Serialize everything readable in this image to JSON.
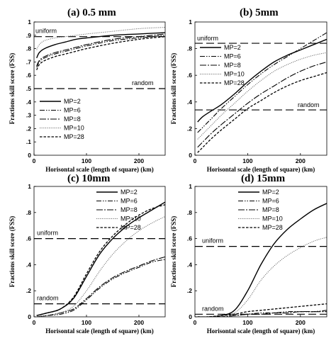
{
  "chart_data": [
    {
      "type": "line",
      "title": "(a) 0.5 mm",
      "xlabel": "Horisontal scale (length of square) (km)",
      "ylabel": "Fractions skill score (FSS)",
      "xlim": [
        0,
        250
      ],
      "ylim": [
        0,
        1
      ],
      "xticks": [
        0,
        100,
        200
      ],
      "yticks": [
        0,
        0.1,
        0.2,
        0.3,
        0.4,
        0.5,
        0.6,
        0.7,
        0.8,
        0.9,
        1
      ],
      "legend_position": "bottom-left",
      "reference_lines": [
        {
          "label": "uniform",
          "y": 0.89
        },
        {
          "label": "random",
          "y": 0.5
        }
      ],
      "series": [
        {
          "name": "MP=2",
          "x": [
            5,
            10,
            20,
            40,
            60,
            80,
            100,
            150,
            200,
            250
          ],
          "values": [
            0.73,
            0.77,
            0.8,
            0.83,
            0.85,
            0.87,
            0.88,
            0.9,
            0.91,
            0.92
          ]
        },
        {
          "name": "MP=6",
          "x": [
            5,
            10,
            20,
            40,
            60,
            80,
            100,
            150,
            200,
            250
          ],
          "values": [
            0.66,
            0.7,
            0.73,
            0.76,
            0.78,
            0.8,
            0.82,
            0.86,
            0.88,
            0.9
          ]
        },
        {
          "name": "MP=8",
          "x": [
            5,
            10,
            20,
            40,
            60,
            80,
            100,
            150,
            200,
            250
          ],
          "values": [
            0.67,
            0.71,
            0.74,
            0.77,
            0.79,
            0.81,
            0.83,
            0.87,
            0.89,
            0.91
          ]
        },
        {
          "name": "MP=10",
          "x": [
            5,
            10,
            20,
            40,
            60,
            80,
            100,
            150,
            200,
            250
          ],
          "values": [
            0.79,
            0.83,
            0.86,
            0.88,
            0.89,
            0.9,
            0.91,
            0.93,
            0.95,
            0.96
          ]
        },
        {
          "name": "MP=28",
          "x": [
            5,
            10,
            20,
            40,
            60,
            80,
            100,
            150,
            200,
            250
          ],
          "values": [
            0.64,
            0.68,
            0.71,
            0.74,
            0.76,
            0.78,
            0.8,
            0.84,
            0.87,
            0.89
          ]
        }
      ]
    },
    {
      "type": "line",
      "title": "(b) 5mm",
      "xlabel": "Horisontal scale (length of square) (km)",
      "ylabel": "Fractions skill score (FSS)",
      "xlim": [
        0,
        250
      ],
      "ylim": [
        0,
        1
      ],
      "xticks": [
        0,
        100,
        200
      ],
      "yticks": [
        0,
        0.2,
        0.4,
        0.6,
        0.8,
        1
      ],
      "legend_position": "top-left",
      "reference_lines": [
        {
          "label": "uniform",
          "y": 0.84
        },
        {
          "label": "random",
          "y": 0.34
        }
      ],
      "series": [
        {
          "name": "MP=2",
          "x": [
            5,
            15,
            30,
            50,
            75,
            100,
            125,
            150,
            175,
            200,
            225,
            250
          ],
          "values": [
            0.25,
            0.29,
            0.33,
            0.38,
            0.46,
            0.55,
            0.63,
            0.7,
            0.75,
            0.79,
            0.83,
            0.87
          ]
        },
        {
          "name": "MP=6",
          "x": [
            5,
            15,
            30,
            50,
            75,
            100,
            125,
            150,
            175,
            200,
            225,
            250
          ],
          "values": [
            0.17,
            0.21,
            0.27,
            0.35,
            0.44,
            0.53,
            0.61,
            0.68,
            0.74,
            0.8,
            0.86,
            0.92
          ]
        },
        {
          "name": "MP=8",
          "x": [
            5,
            15,
            30,
            50,
            75,
            100,
            125,
            150,
            175,
            200,
            225,
            250
          ],
          "values": [
            0.06,
            0.1,
            0.16,
            0.23,
            0.31,
            0.39,
            0.46,
            0.52,
            0.58,
            0.63,
            0.67,
            0.7
          ]
        },
        {
          "name": "MP=10",
          "x": [
            5,
            15,
            30,
            50,
            75,
            100,
            125,
            150,
            175,
            200,
            225,
            250
          ],
          "values": [
            0.12,
            0.16,
            0.22,
            0.3,
            0.39,
            0.48,
            0.56,
            0.63,
            0.68,
            0.72,
            0.75,
            0.77
          ]
        },
        {
          "name": "MP=28",
          "x": [
            5,
            15,
            30,
            50,
            75,
            100,
            125,
            150,
            175,
            200,
            225,
            250
          ],
          "values": [
            0.02,
            0.06,
            0.12,
            0.19,
            0.27,
            0.35,
            0.41,
            0.47,
            0.52,
            0.56,
            0.59,
            0.62
          ]
        }
      ]
    },
    {
      "type": "line",
      "title": "(c) 10mm",
      "xlabel": "Horisontal scale (length of square) (km)",
      "ylabel": "Fractions skill score (FSS)",
      "xlim": [
        0,
        250
      ],
      "ylim": [
        0,
        1
      ],
      "xticks": [
        0,
        100,
        200
      ],
      "yticks": [
        0,
        0.2,
        0.4,
        0.6,
        0.8,
        1
      ],
      "legend_position": "top-right",
      "reference_lines": [
        {
          "label": "uniform",
          "y": 0.6
        },
        {
          "label": "random",
          "y": 0.1
        }
      ],
      "series": [
        {
          "name": "MP=2",
          "x": [
            5,
            25,
            50,
            75,
            100,
            125,
            150,
            175,
            200,
            225,
            250
          ],
          "values": [
            0.01,
            0.03,
            0.06,
            0.14,
            0.31,
            0.48,
            0.6,
            0.69,
            0.76,
            0.82,
            0.88
          ]
        },
        {
          "name": "MP=6",
          "x": [
            5,
            25,
            50,
            75,
            100,
            125,
            150,
            175,
            200,
            225,
            250
          ],
          "values": [
            0.0,
            0.01,
            0.02,
            0.05,
            0.13,
            0.22,
            0.29,
            0.34,
            0.38,
            0.42,
            0.44
          ]
        },
        {
          "name": "MP=8",
          "x": [
            5,
            25,
            50,
            75,
            100,
            125,
            150,
            175,
            200,
            225,
            250
          ],
          "values": [
            0.0,
            0.01,
            0.03,
            0.06,
            0.14,
            0.23,
            0.3,
            0.35,
            0.39,
            0.43,
            0.46
          ]
        },
        {
          "name": "MP=10",
          "x": [
            5,
            25,
            50,
            75,
            100,
            125,
            150,
            175,
            200,
            225,
            250
          ],
          "values": [
            0.0,
            0.01,
            0.03,
            0.08,
            0.2,
            0.35,
            0.48,
            0.58,
            0.66,
            0.72,
            0.77
          ]
        },
        {
          "name": "MP=28",
          "x": [
            5,
            25,
            50,
            75,
            100,
            125,
            150,
            175,
            200,
            225,
            250
          ],
          "values": [
            0.01,
            0.03,
            0.06,
            0.15,
            0.33,
            0.5,
            0.62,
            0.71,
            0.78,
            0.83,
            0.86
          ]
        }
      ]
    },
    {
      "type": "line",
      "title": "(d) 15mm",
      "xlabel": "Horisontal scale (length of square) (km)",
      "ylabel": "Fractions skill score (FSS)",
      "xlim": [
        0,
        250
      ],
      "ylim": [
        0,
        1
      ],
      "xticks": [
        0,
        100,
        200
      ],
      "yticks": [
        0,
        0.2,
        0.4,
        0.6,
        0.8,
        1
      ],
      "legend_position": "top-left",
      "reference_lines": [
        {
          "label": "uniform",
          "y": 0.54
        },
        {
          "label": "random",
          "y": 0.02
        }
      ],
      "series": [
        {
          "name": "MP=2",
          "x": [
            5,
            25,
            50,
            75,
            100,
            125,
            150,
            175,
            200,
            225,
            250
          ],
          "values": [
            0.0,
            0.0,
            0.01,
            0.05,
            0.2,
            0.4,
            0.56,
            0.67,
            0.75,
            0.82,
            0.87
          ]
        },
        {
          "name": "MP=6",
          "x": [
            5,
            25,
            50,
            75,
            100,
            125,
            150,
            175,
            200,
            225,
            250
          ],
          "values": [
            0.0,
            0.0,
            0.0,
            0.01,
            0.02,
            0.03,
            0.03,
            0.04,
            0.04,
            0.04,
            0.05
          ]
        },
        {
          "name": "MP=8",
          "x": [
            5,
            25,
            50,
            75,
            100,
            125,
            150,
            175,
            200,
            225,
            250
          ],
          "values": [
            0.0,
            0.0,
            0.0,
            0.01,
            0.02,
            0.02,
            0.03,
            0.03,
            0.04,
            0.04,
            0.04
          ]
        },
        {
          "name": "MP=10",
          "x": [
            5,
            25,
            50,
            75,
            100,
            125,
            150,
            175,
            200,
            225,
            250
          ],
          "values": [
            0.0,
            0.0,
            0.01,
            0.03,
            0.13,
            0.28,
            0.39,
            0.47,
            0.53,
            0.58,
            0.61
          ]
        },
        {
          "name": "MP=28",
          "x": [
            5,
            25,
            50,
            75,
            100,
            125,
            150,
            175,
            200,
            225,
            250
          ],
          "values": [
            0.0,
            0.0,
            0.01,
            0.02,
            0.04,
            0.05,
            0.06,
            0.07,
            0.08,
            0.09,
            0.1
          ]
        }
      ]
    }
  ]
}
